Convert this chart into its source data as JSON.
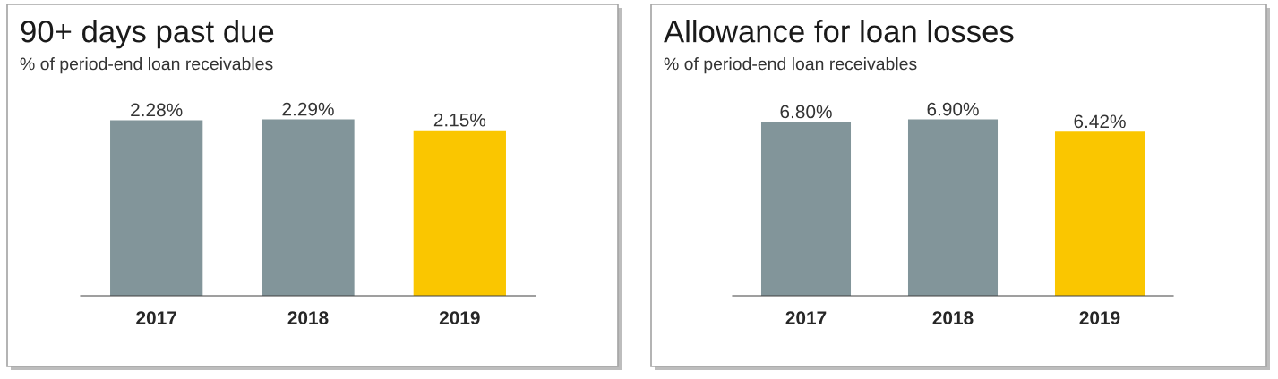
{
  "chart_data": [
    {
      "type": "bar",
      "title": "90+ days past due",
      "subtitle": "% of period-end loan receivables",
      "categories": [
        "2017",
        "2018",
        "2019"
      ],
      "values": [
        2.28,
        2.29,
        2.15
      ],
      "value_labels": [
        "2.28%",
        "2.29%",
        "2.15%"
      ],
      "colors": [
        "#82959a",
        "#82959a",
        "#fac600"
      ],
      "grid": false,
      "legend": false
    },
    {
      "type": "bar",
      "title": "Allowance for loan losses",
      "subtitle": "% of period-end loan receivables",
      "categories": [
        "2017",
        "2018",
        "2019"
      ],
      "values": [
        6.8,
        6.9,
        6.42
      ],
      "value_labels": [
        "6.80%",
        "6.90%",
        "6.42%"
      ],
      "colors": [
        "#82959a",
        "#82959a",
        "#fac600"
      ],
      "grid": false,
      "legend": false
    }
  ]
}
